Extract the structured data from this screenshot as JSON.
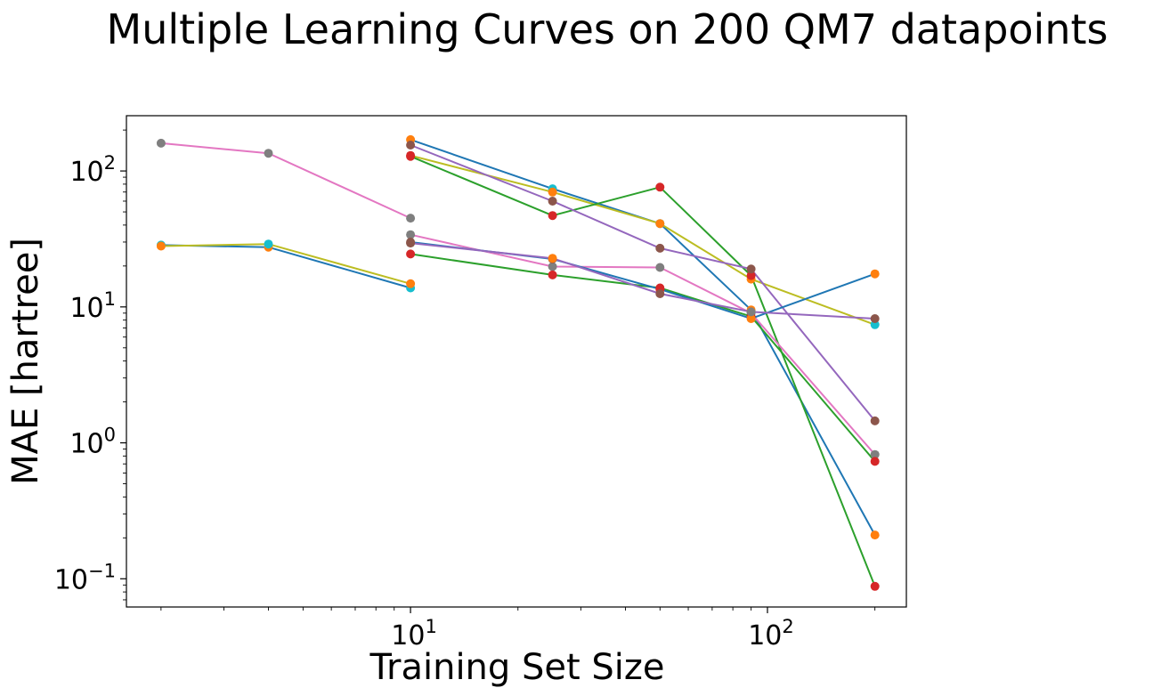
{
  "chart_data": {
    "type": "line",
    "title": "Multiple Learning Curves on 200 QM7 datapoints",
    "xlabel": "Training Set Size",
    "ylabel": "MAE [hartree]",
    "xscale": "log",
    "yscale": "log",
    "xlim": [
      1.6,
      245
    ],
    "ylim": [
      0.062,
      255
    ],
    "grid": false,
    "legend": "none",
    "x_ticks": [
      {
        "value": 10,
        "base": "10",
        "exp": "1"
      },
      {
        "value": 100,
        "base": "10",
        "exp": "2"
      }
    ],
    "y_ticks": [
      {
        "value": 0.1,
        "base": "10",
        "exp": "−1"
      },
      {
        "value": 1,
        "base": "10",
        "exp": "0"
      },
      {
        "value": 10,
        "base": "10",
        "exp": "1"
      },
      {
        "value": 100,
        "base": "10",
        "exp": "2"
      }
    ],
    "series": [
      {
        "line_color": "#1f77b4",
        "point_colors": [
          "#17becf",
          "#ff7f0e",
          "#17becf"
        ],
        "points": [
          [
            2,
            28.5
          ],
          [
            4,
            27.5
          ],
          [
            10,
            13.8
          ]
        ]
      },
      {
        "line_color": "#bcbd22",
        "point_colors": [
          "#ff7f0e",
          "#17becf",
          "#ff7f0e"
        ],
        "points": [
          [
            2,
            28.0
          ],
          [
            4,
            29.0
          ],
          [
            10,
            14.8
          ]
        ]
      },
      {
        "line_color": "#e377c2",
        "point_colors": [
          "#7f7f7f",
          "#7f7f7f",
          "#7f7f7f"
        ],
        "points": [
          [
            2,
            160
          ],
          [
            4,
            135
          ],
          [
            10,
            45
          ]
        ]
      },
      {
        "line_color": "#1f77b4",
        "point_colors": [
          "#ff7f0e",
          "#17becf",
          "#17becf",
          "#ff7f0e",
          "#ff7f0e"
        ],
        "points": [
          [
            10,
            170
          ],
          [
            25,
            74
          ],
          [
            50,
            41
          ],
          [
            90,
            9.5
          ],
          [
            200,
            0.21
          ]
        ]
      },
      {
        "line_color": "#bcbd22",
        "point_colors": [
          "#d62728",
          "#ff7f0e",
          "#ff7f0e",
          "#ff7f0e",
          "#17becf"
        ],
        "points": [
          [
            10,
            130
          ],
          [
            25,
            70
          ],
          [
            50,
            41
          ],
          [
            90,
            16
          ],
          [
            200,
            7.4
          ]
        ]
      },
      {
        "line_color": "#2ca02c",
        "point_colors": [
          "#d62728",
          "#d62728",
          "#d62728",
          "#d62728",
          "#d62728"
        ],
        "points": [
          [
            10,
            128
          ],
          [
            25,
            47
          ],
          [
            50,
            76
          ],
          [
            90,
            17
          ],
          [
            200,
            0.088
          ]
        ]
      },
      {
        "line_color": "#9467bd",
        "point_colors": [
          "#8c564b",
          "#8c564b",
          "#8c564b",
          "#8c564b",
          "#8c564b"
        ],
        "points": [
          [
            10,
            155
          ],
          [
            25,
            60
          ],
          [
            50,
            27
          ],
          [
            90,
            19
          ],
          [
            200,
            1.45
          ]
        ]
      },
      {
        "line_color": "#e377c2",
        "point_colors": [
          "#7f7f7f",
          "#7f7f7f",
          "#7f7f7f",
          "#7f7f7f",
          "#7f7f7f"
        ],
        "points": [
          [
            10,
            34
          ],
          [
            25,
            19.8
          ],
          [
            50,
            19.5
          ],
          [
            90,
            9.0
          ],
          [
            200,
            0.82
          ]
        ]
      },
      {
        "line_color": "#2ca02c",
        "point_colors": [
          "#d62728",
          "#d62728",
          "#d62728",
          "#d62728",
          "#d62728"
        ],
        "points": [
          [
            10,
            24.5
          ],
          [
            25,
            17.2
          ],
          [
            50,
            13.8
          ],
          [
            90,
            8.5
          ],
          [
            200,
            0.73
          ]
        ]
      },
      {
        "line_color": "#1f77b4",
        "point_colors": [
          "#8c564b",
          "#8c564b",
          "#d62728",
          "#ff7f0e",
          "#ff7f0e"
        ],
        "points": [
          [
            10,
            30
          ],
          [
            25,
            22.5
          ],
          [
            50,
            13.5
          ],
          [
            90,
            8.2
          ],
          [
            200,
            17.5
          ]
        ]
      },
      {
        "line_color": "#9467bd",
        "point_colors": [
          "#8c564b",
          "#ff7f0e",
          "#8c564b",
          "#7f7f7f",
          "#8c564b"
        ],
        "points": [
          [
            10,
            29.5
          ],
          [
            25,
            22.8
          ],
          [
            50,
            12.5
          ],
          [
            90,
            9.2
          ],
          [
            200,
            8.2
          ]
        ]
      }
    ]
  }
}
